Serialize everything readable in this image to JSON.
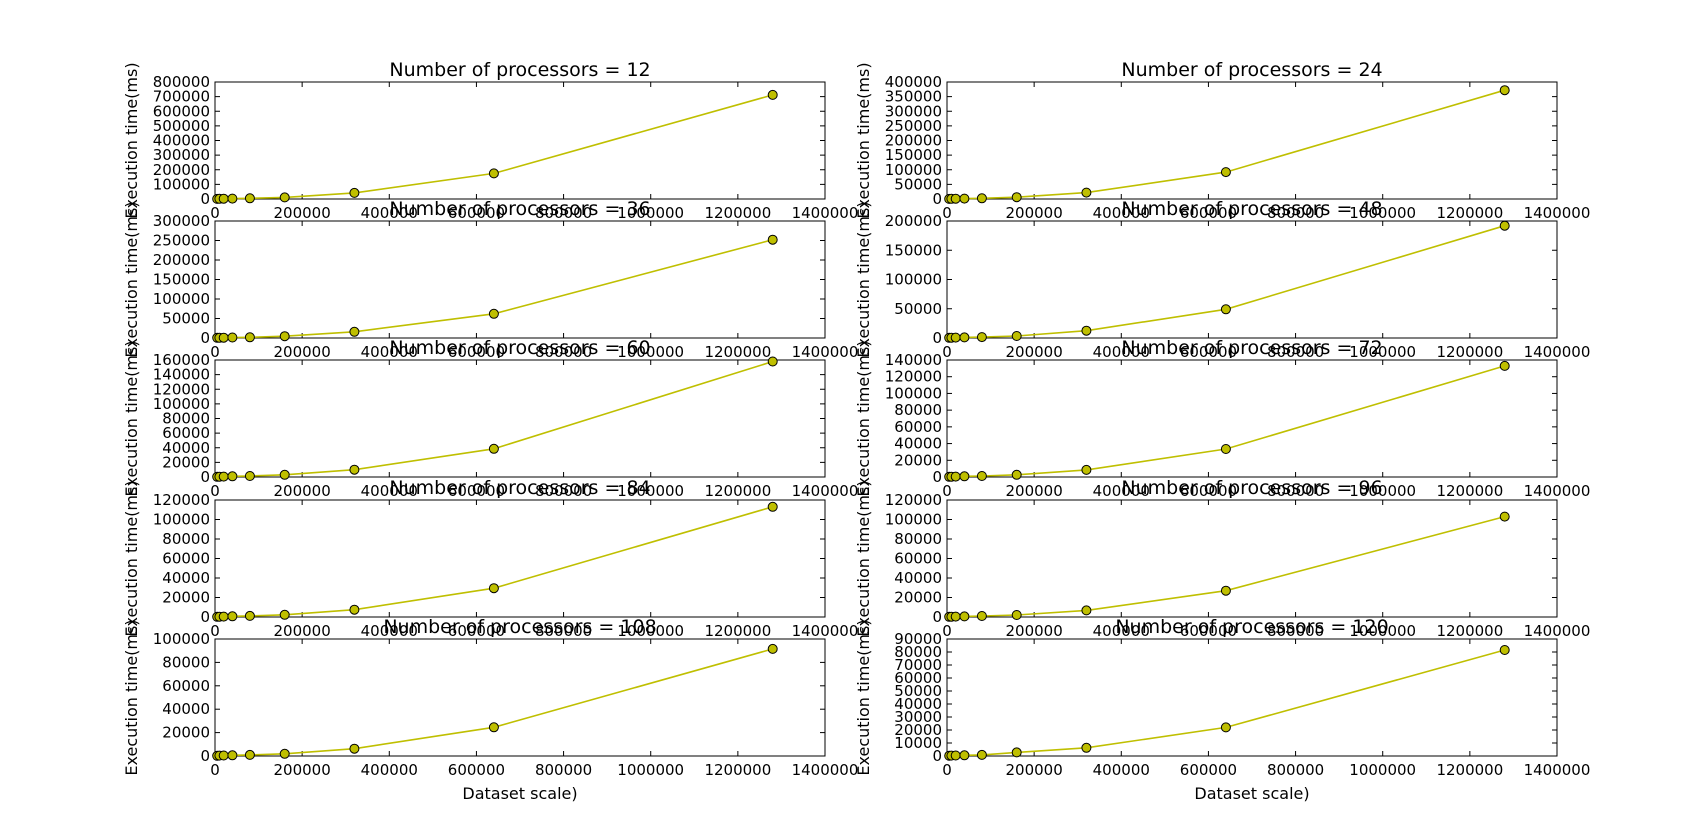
{
  "figure": {
    "line_color": "#bfbf00",
    "marker_fill": "#bfbf00",
    "marker_edge": "#000000",
    "background": "#ffffff"
  },
  "chart_data": [
    {
      "type": "line",
      "title": "Number of processors = 12",
      "xlabel": "",
      "ylabel": "Execution time(ms)",
      "xlim": [
        0,
        1400000
      ],
      "ylim": [
        0,
        800000
      ],
      "xticks": [
        "0",
        "200000",
        "400000",
        "600000",
        "800000",
        "1000000",
        "1200000",
        "1400000"
      ],
      "yticks": [
        "0",
        "100000",
        "200000",
        "300000",
        "400000",
        "500000",
        "600000",
        "700000",
        "800000"
      ],
      "x": [
        5000,
        10000,
        20000,
        40000,
        80000,
        160000,
        320000,
        640000,
        1280000
      ],
      "y": [
        1000,
        1500,
        2000,
        3000,
        4500,
        11000,
        42000,
        175000,
        712000
      ]
    },
    {
      "type": "line",
      "title": "Number of processors = 24",
      "xlabel": "",
      "ylabel": "Execution time(ms)",
      "xlim": [
        0,
        1400000
      ],
      "ylim": [
        0,
        400000
      ],
      "xticks": [
        "0",
        "200000",
        "400000",
        "600000",
        "800000",
        "1000000",
        "1200000",
        "1400000"
      ],
      "yticks": [
        "0",
        "50000",
        "100000",
        "150000",
        "200000",
        "250000",
        "300000",
        "350000",
        "400000"
      ],
      "x": [
        5000,
        10000,
        20000,
        40000,
        80000,
        160000,
        320000,
        640000,
        1280000
      ],
      "y": [
        500,
        800,
        1000,
        1500,
        2500,
        6000,
        22000,
        92000,
        372000
      ]
    },
    {
      "type": "line",
      "title": "Number of processors = 36",
      "xlabel": "",
      "ylabel": "Execution time(ms)",
      "xlim": [
        0,
        1400000
      ],
      "ylim": [
        0,
        300000
      ],
      "xticks": [
        "0",
        "200000",
        "400000",
        "600000",
        "800000",
        "1000000",
        "1200000",
        "1400000"
      ],
      "yticks": [
        "0",
        "50000",
        "100000",
        "150000",
        "200000",
        "250000",
        "300000"
      ],
      "x": [
        5000,
        10000,
        20000,
        40000,
        80000,
        160000,
        320000,
        640000,
        1280000
      ],
      "y": [
        400,
        600,
        800,
        1200,
        1800,
        4500,
        16000,
        62000,
        252000
      ]
    },
    {
      "type": "line",
      "title": "Number of processors = 48",
      "xlabel": "",
      "ylabel": "Execution time(ms)",
      "xlim": [
        0,
        1400000
      ],
      "ylim": [
        0,
        200000
      ],
      "xticks": [
        "0",
        "200000",
        "400000",
        "600000",
        "800000",
        "1000000",
        "1200000",
        "1400000"
      ],
      "yticks": [
        "0",
        "50000",
        "100000",
        "150000",
        "200000"
      ],
      "x": [
        5000,
        10000,
        20000,
        40000,
        80000,
        160000,
        320000,
        640000,
        1280000
      ],
      "y": [
        300,
        500,
        700,
        1000,
        1500,
        3500,
        12500,
        49000,
        192000
      ]
    },
    {
      "type": "line",
      "title": "Number of processors = 60",
      "xlabel": "",
      "ylabel": "Execution time(ms)",
      "xlim": [
        0,
        1400000
      ],
      "ylim": [
        0,
        160000
      ],
      "xticks": [
        "0",
        "200000",
        "400000",
        "600000",
        "800000",
        "1000000",
        "1200000",
        "1400000"
      ],
      "yticks": [
        "0",
        "20000",
        "40000",
        "60000",
        "80000",
        "100000",
        "120000",
        "140000",
        "160000"
      ],
      "x": [
        5000,
        10000,
        20000,
        40000,
        80000,
        160000,
        320000,
        640000,
        1280000
      ],
      "y": [
        300,
        400,
        600,
        900,
        1300,
        3000,
        10000,
        38500,
        158000
      ]
    },
    {
      "type": "line",
      "title": "Number of processors = 72",
      "xlabel": "",
      "ylabel": "Execution time(ms)",
      "xlim": [
        0,
        1400000
      ],
      "ylim": [
        0,
        140000
      ],
      "xticks": [
        "0",
        "200000",
        "400000",
        "600000",
        "800000",
        "1000000",
        "1200000",
        "1400000"
      ],
      "yticks": [
        "0",
        "20000",
        "40000",
        "60000",
        "80000",
        "100000",
        "120000",
        "140000"
      ],
      "x": [
        5000,
        10000,
        20000,
        40000,
        80000,
        160000,
        320000,
        640000,
        1280000
      ],
      "y": [
        250,
        350,
        500,
        800,
        1200,
        2600,
        8500,
        33500,
        133000
      ]
    },
    {
      "type": "line",
      "title": "Number of processors = 84",
      "xlabel": "",
      "ylabel": "Execution time(ms)",
      "xlim": [
        0,
        1400000
      ],
      "ylim": [
        0,
        120000
      ],
      "xticks": [
        "0",
        "200000",
        "400000",
        "600000",
        "800000",
        "1000000",
        "1200000",
        "1400000"
      ],
      "yticks": [
        "0",
        "20000",
        "40000",
        "60000",
        "80000",
        "100000",
        "120000"
      ],
      "x": [
        5000,
        10000,
        20000,
        40000,
        80000,
        160000,
        320000,
        640000,
        1280000
      ],
      "y": [
        250,
        350,
        450,
        700,
        1100,
        2300,
        7500,
        29500,
        113000
      ]
    },
    {
      "type": "line",
      "title": "Number of processors = 96",
      "xlabel": "",
      "ylabel": "Execution time(ms)",
      "xlim": [
        0,
        1400000
      ],
      "ylim": [
        0,
        120000
      ],
      "xticks": [
        "0",
        "200000",
        "400000",
        "600000",
        "800000",
        "1000000",
        "1200000",
        "1400000"
      ],
      "yticks": [
        "0",
        "20000",
        "40000",
        "60000",
        "80000",
        "100000",
        "120000"
      ],
      "x": [
        5000,
        10000,
        20000,
        40000,
        80000,
        160000,
        320000,
        640000,
        1280000
      ],
      "y": [
        200,
        300,
        400,
        650,
        1000,
        2100,
        6800,
        27000,
        103000
      ]
    },
    {
      "type": "line",
      "title": "Number of processors = 108",
      "xlabel": "Dataset scale)",
      "ylabel": "Execution time(ms)",
      "xlim": [
        0,
        1400000
      ],
      "ylim": [
        0,
        100000
      ],
      "xticks": [
        "0",
        "200000",
        "400000",
        "600000",
        "800000",
        "1000000",
        "1200000",
        "1400000"
      ],
      "yticks": [
        "0",
        "20000",
        "40000",
        "60000",
        "80000",
        "100000"
      ],
      "x": [
        5000,
        10000,
        20000,
        40000,
        80000,
        160000,
        320000,
        640000,
        1280000
      ],
      "y": [
        200,
        300,
        400,
        600,
        900,
        1900,
        6200,
        24500,
        91500
      ]
    },
    {
      "type": "line",
      "title": "Number of processors = 120",
      "xlabel": "Dataset scale)",
      "ylabel": "Execution time(ms)",
      "xlim": [
        0,
        1400000
      ],
      "ylim": [
        0,
        90000
      ],
      "xticks": [
        "0",
        "200000",
        "400000",
        "600000",
        "800000",
        "1000000",
        "1200000",
        "1400000"
      ],
      "yticks": [
        "0",
        "10000",
        "20000",
        "30000",
        "40000",
        "50000",
        "60000",
        "70000",
        "80000",
        "90000"
      ],
      "x": [
        5000,
        10000,
        20000,
        40000,
        80000,
        160000,
        320000,
        640000,
        1280000
      ],
      "y": [
        200,
        280,
        380,
        550,
        850,
        2800,
        6300,
        22000,
        81500
      ]
    }
  ]
}
